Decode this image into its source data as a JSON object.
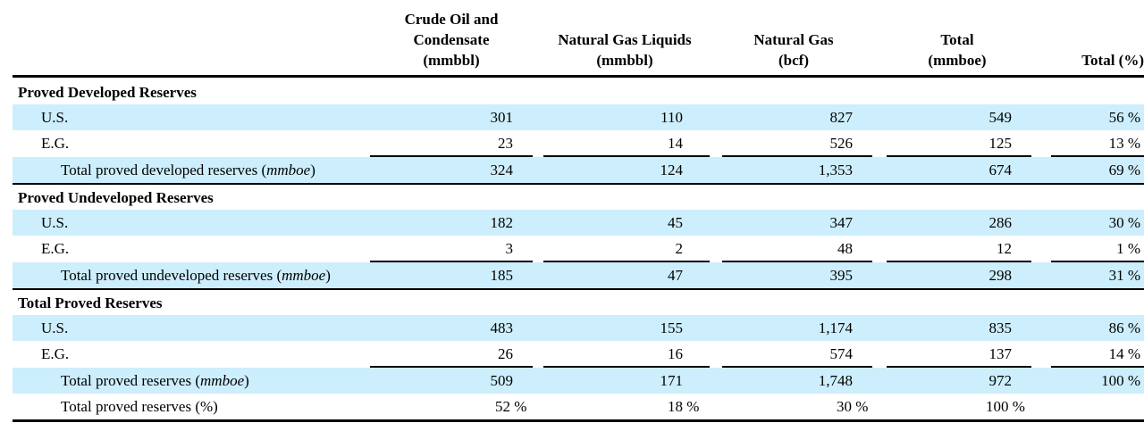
{
  "headers": {
    "crude": [
      "Crude Oil and",
      "Condensate",
      "(mmbbl)"
    ],
    "ngl": [
      "Natural Gas Liquids",
      "(mmbbl)"
    ],
    "gas": [
      "Natural Gas",
      "(bcf)"
    ],
    "total": [
      "Total",
      "(mmboe)"
    ],
    "total_pct": "Total (%)"
  },
  "sections": [
    {
      "title": "Proved Developed Reserves",
      "rows": [
        {
          "label": "U.S.",
          "crude": "301",
          "ngl": "110",
          "gas": "827",
          "total": "549",
          "pct": "56 %"
        },
        {
          "label": "E.G.",
          "crude": "23",
          "ngl": "14",
          "gas": "526",
          "total": "125",
          "pct": "13 %"
        }
      ],
      "total_row": {
        "label": "Total proved developed reserves",
        "unit": "mmboe",
        "crude": "324",
        "ngl": "124",
        "gas": "1,353",
        "total": "674",
        "pct": "69 %"
      }
    },
    {
      "title": "Proved Undeveloped Reserves",
      "rows": [
        {
          "label": "U.S.",
          "crude": "182",
          "ngl": "45",
          "gas": "347",
          "total": "286",
          "pct": "30 %"
        },
        {
          "label": "E.G.",
          "crude": "3",
          "ngl": "2",
          "gas": "48",
          "total": "12",
          "pct": "1 %"
        }
      ],
      "total_row": {
        "label": "Total proved undeveloped reserves",
        "unit": "mmboe",
        "crude": "185",
        "ngl": "47",
        "gas": "395",
        "total": "298",
        "pct": "31 %"
      }
    },
    {
      "title": "Total Proved Reserves",
      "rows": [
        {
          "label": "U.S.",
          "crude": "483",
          "ngl": "155",
          "gas": "1,174",
          "total": "835",
          "pct": "86 %"
        },
        {
          "label": "E.G.",
          "crude": "26",
          "ngl": "16",
          "gas": "574",
          "total": "137",
          "pct": "14 %"
        }
      ],
      "total_row": {
        "label": "Total proved reserves",
        "unit": "mmboe",
        "crude": "509",
        "ngl": "171",
        "gas": "1,748",
        "total": "972",
        "pct": "100 %"
      }
    }
  ],
  "pct_row": {
    "label": "Total proved reserves (%)",
    "crude": "52 %",
    "ngl": "18 %",
    "gas": "30 %",
    "total": "100 %"
  }
}
